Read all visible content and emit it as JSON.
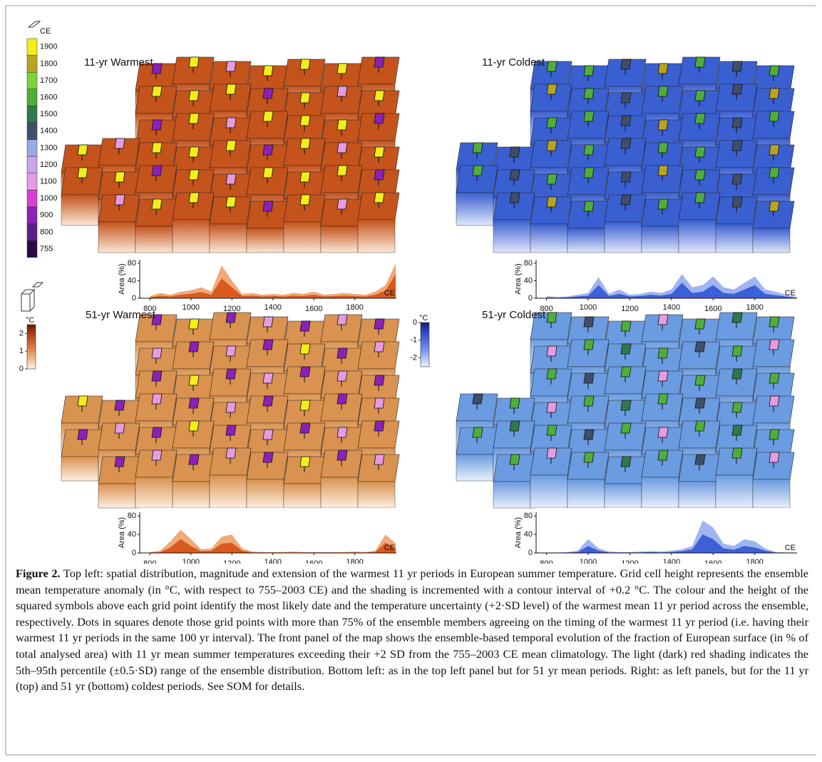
{
  "figure": {
    "ce_colorbar": {
      "label": "CE",
      "ticks": [
        1900,
        1800,
        1700,
        1600,
        1500,
        1400,
        1300,
        1200,
        1100,
        1000,
        900,
        800,
        755
      ],
      "colors": [
        "#f2ee1a",
        "#b8a421",
        "#7fd13a",
        "#4fae3a",
        "#2f7a4d",
        "#3f4f6a",
        "#9aa8e8",
        "#c9a6ea",
        "#e59be0",
        "#d63fd0",
        "#8a22b8",
        "#5a1f88",
        "#2a0a45"
      ]
    },
    "warm_colorbar": {
      "label": "°C",
      "ticks": [
        0,
        1,
        2
      ],
      "lim": [
        0,
        2.5
      ]
    },
    "cold_colorbar": {
      "label": "°C",
      "ticks": [
        -2,
        -1,
        0
      ],
      "lim": [
        -2.5,
        0
      ]
    },
    "panels": [
      {
        "title": "11-yr Warmest",
        "inset": {
          "type": "area",
          "ylabel": "Area (%)",
          "xlabel": "CE",
          "x": [
            800,
            850,
            900,
            950,
            1000,
            1050,
            1100,
            1150,
            1200,
            1250,
            1300,
            1350,
            1400,
            1450,
            1500,
            1550,
            1600,
            1650,
            1700,
            1750,
            1800,
            1850,
            1900,
            1950,
            2000
          ],
          "series": [
            {
              "color": "#f2a877",
              "values": [
                5,
                12,
                8,
                15,
                18,
                25,
                15,
                75,
                40,
                10,
                12,
                8,
                10,
                8,
                12,
                10,
                15,
                8,
                10,
                12,
                10,
                8,
                15,
                30,
                80
              ]
            },
            {
              "color": "#d95a1e",
              "values": [
                2,
                6,
                4,
                8,
                10,
                14,
                8,
                45,
                25,
                5,
                6,
                4,
                5,
                4,
                6,
                5,
                8,
                4,
                5,
                6,
                5,
                4,
                8,
                18,
                55
              ]
            }
          ],
          "xlim": [
            750,
            2003
          ],
          "ylim": [
            0,
            88
          ],
          "xticks": [
            800,
            1000,
            1200,
            1400,
            1600,
            1800
          ],
          "yticks": [
            0,
            40,
            80
          ]
        }
      },
      {
        "title": "11-yr Coldest",
        "inset": {
          "type": "area",
          "ylabel": "Area (%)",
          "xlabel": "CE",
          "x": [
            800,
            850,
            900,
            950,
            1000,
            1050,
            1100,
            1150,
            1200,
            1250,
            1300,
            1350,
            1400,
            1450,
            1500,
            1550,
            1600,
            1650,
            1700,
            1750,
            1800,
            1850,
            1900,
            1950,
            2000
          ],
          "series": [
            {
              "color": "#9fb4f2",
              "values": [
                5,
                3,
                4,
                8,
                12,
                48,
                10,
                20,
                8,
                10,
                15,
                12,
                20,
                55,
                25,
                30,
                50,
                25,
                20,
                35,
                50,
                20,
                15,
                8,
                3
              ]
            },
            {
              "color": "#3e5fd6",
              "values": [
                2,
                1,
                2,
                4,
                6,
                30,
                5,
                10,
                4,
                5,
                8,
                6,
                10,
                35,
                12,
                15,
                30,
                12,
                10,
                20,
                30,
                10,
                7,
                4,
                1
              ]
            }
          ],
          "xlim": [
            750,
            2003
          ],
          "ylim": [
            0,
            88
          ],
          "xticks": [
            800,
            1000,
            1200,
            1400,
            1600,
            1800
          ],
          "yticks": [
            0,
            40,
            80
          ]
        }
      },
      {
        "title": "51-yr Warmest",
        "inset": {
          "type": "area",
          "ylabel": "Area (%)",
          "xlabel": "CE",
          "x": [
            800,
            850,
            900,
            950,
            1000,
            1050,
            1100,
            1150,
            1200,
            1250,
            1300,
            1350,
            1400,
            1450,
            1500,
            1550,
            1600,
            1650,
            1700,
            1750,
            1800,
            1850,
            1900,
            1950,
            2000
          ],
          "series": [
            {
              "color": "#f2a877",
              "values": [
                2,
                5,
                25,
                50,
                30,
                8,
                10,
                35,
                40,
                10,
                3,
                2,
                2,
                2,
                3,
                2,
                2,
                2,
                2,
                2,
                3,
                2,
                5,
                40,
                20
              ]
            },
            {
              "color": "#d95a1e",
              "values": [
                1,
                2,
                12,
                30,
                15,
                4,
                5,
                20,
                22,
                5,
                1,
                1,
                1,
                1,
                1,
                1,
                1,
                1,
                1,
                1,
                1,
                1,
                2,
                22,
                10
              ]
            }
          ],
          "xlim": [
            750,
            2003
          ],
          "ylim": [
            0,
            88
          ],
          "xticks": [
            800,
            1000,
            1200,
            1400,
            1600,
            1800
          ],
          "yticks": [
            0,
            40,
            80
          ]
        }
      },
      {
        "title": "51-yr Coldest",
        "inset": {
          "type": "area",
          "ylabel": "Area (%)",
          "xlabel": "CE",
          "x": [
            800,
            850,
            900,
            950,
            1000,
            1050,
            1100,
            1150,
            1200,
            1250,
            1300,
            1350,
            1400,
            1450,
            1500,
            1550,
            1600,
            1650,
            1700,
            1750,
            1800,
            1850,
            1900,
            1950,
            2000
          ],
          "series": [
            {
              "color": "#9fb4f2",
              "values": [
                1,
                1,
                2,
                5,
                30,
                10,
                3,
                2,
                2,
                3,
                4,
                3,
                5,
                8,
                15,
                70,
                55,
                20,
                15,
                30,
                25,
                10,
                2,
                1,
                1
              ]
            },
            {
              "color": "#3e5fd6",
              "values": [
                0,
                0,
                1,
                2,
                15,
                5,
                1,
                1,
                1,
                1,
                2,
                1,
                2,
                4,
                8,
                40,
                30,
                10,
                7,
                15,
                12,
                5,
                1,
                0,
                0
              ]
            }
          ],
          "xlim": [
            750,
            2003
          ],
          "ylim": [
            0,
            88
          ],
          "xticks": [
            800,
            1000,
            1200,
            1400,
            1600,
            1800
          ],
          "yticks": [
            0,
            40,
            80
          ]
        }
      }
    ]
  },
  "caption": {
    "label": "Figure 2.",
    "text": "Top left: spatial distribution, magnitude and extension of the warmest 11 yr periods in European summer temperature. Grid cell height represents the ensemble mean temperature anomaly (in °C, with respect to 755–2003 CE) and the shading is incremented with a contour interval of +0.2 °C. The colour and the height of the squared symbols above each grid point identify the most likely date and the temperature uncertainty (+2·SD level) of the warmest mean 11 yr period across the ensemble, respectively. Dots in squares denote those grid points with more than 75% of the ensemble members agreeing on the timing of the warmest 11 yr period (i.e. having their warmest 11 yr periods in the same 100 yr interval). The front panel of the map shows the ensemble-based temporal evolution of the fraction of European surface (in % of total analysed area) with 11 yr mean summer temperatures exceeding their +2 SD from the 755–2003 CE mean climatology. The light (dark) red shading indicates the 5th–95th percentile (±0.5·SD) range of the ensemble distribution. Bottom left: as in the top left panel but for 51 yr mean periods. Right: as left panels, but for the 11 yr (top) and 51 yr (bottom) coldest periods. See SOM for details."
  }
}
